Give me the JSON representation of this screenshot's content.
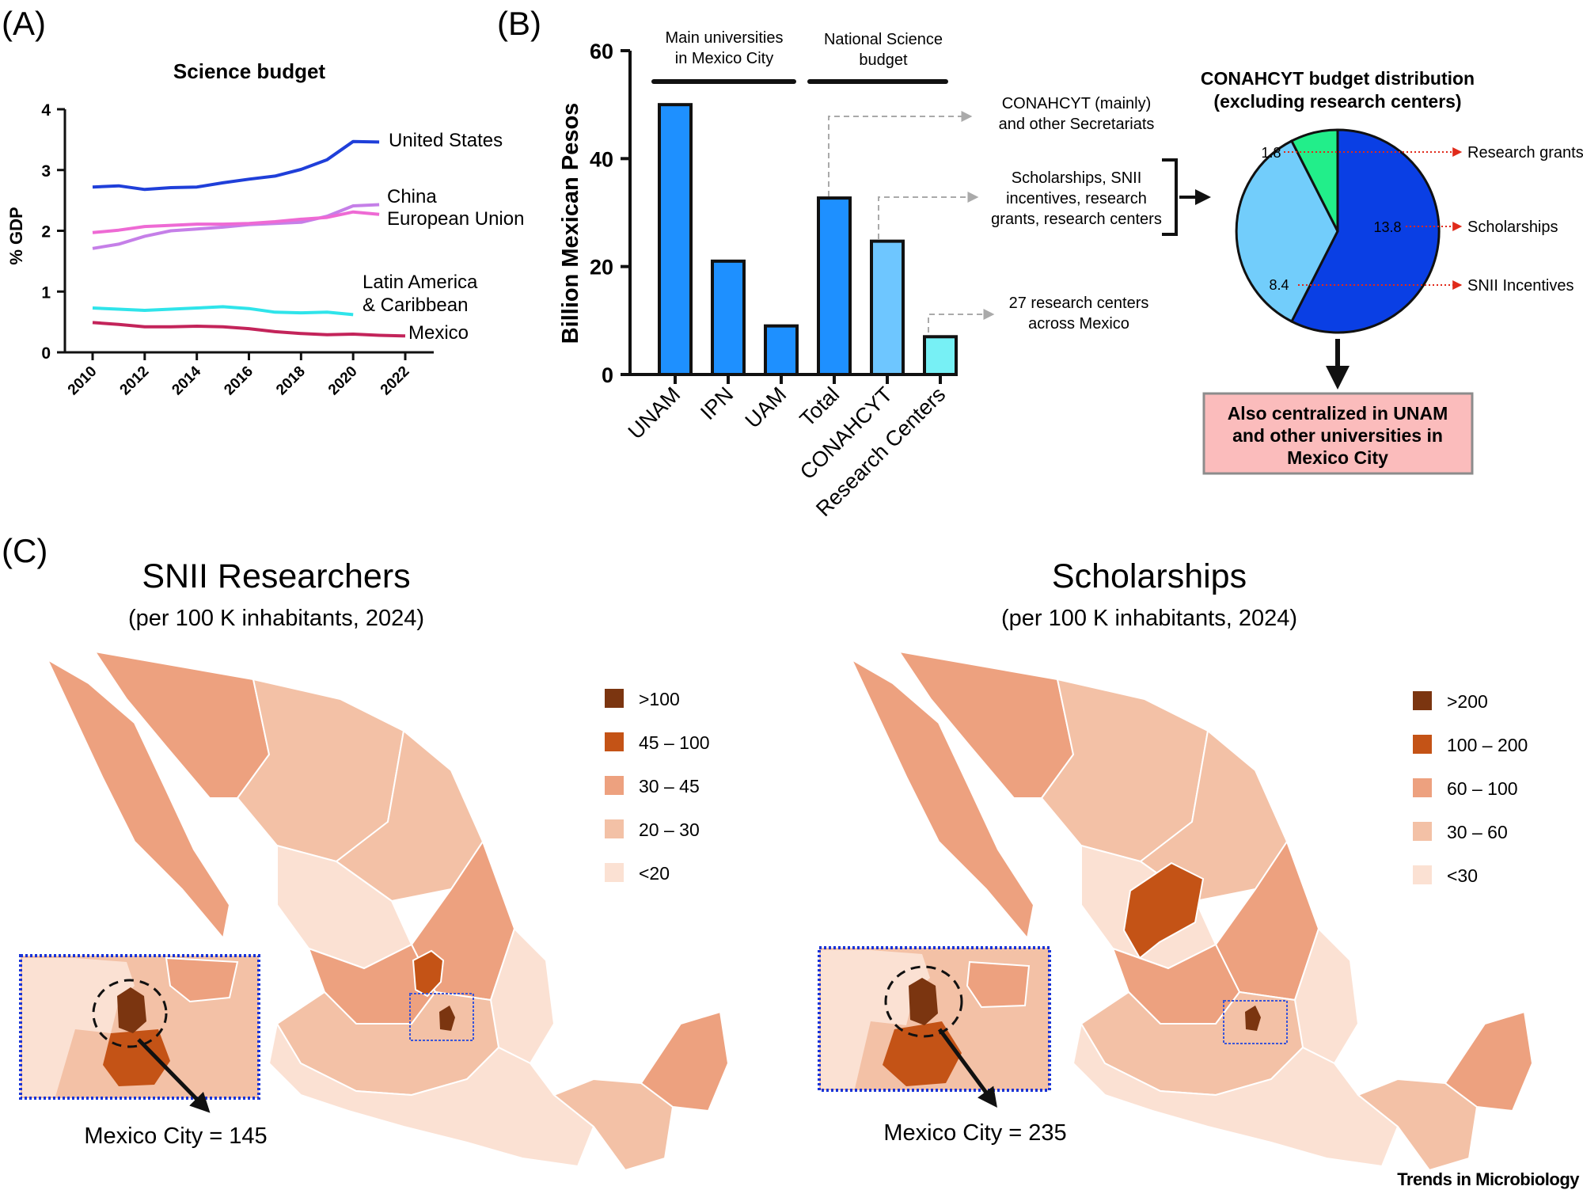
{
  "panels": {
    "a": "(A)",
    "b": "(B)",
    "c": "(C)"
  },
  "chart_data": [
    {
      "type": "line",
      "title": "Science budget",
      "xlabel": "",
      "ylabel": "% GDP",
      "xlim": [
        2010,
        2022
      ],
      "ylim": [
        0,
        4
      ],
      "xticks": [
        "2010",
        "2012",
        "2014",
        "2016",
        "2018",
        "2020",
        "2022"
      ],
      "yticks": [
        "0",
        "1",
        "2",
        "3",
        "4"
      ],
      "series": [
        {
          "name": "United States",
          "color": "#1f3fd9",
          "x": [
            2010,
            2011,
            2012,
            2013,
            2014,
            2015,
            2016,
            2017,
            2018,
            2019,
            2020,
            2021
          ],
          "y": [
            2.72,
            2.74,
            2.68,
            2.71,
            2.72,
            2.79,
            2.85,
            2.9,
            3.01,
            3.17,
            3.47,
            3.46
          ]
        },
        {
          "name": "China",
          "color": "#c57fe8",
          "x": [
            2010,
            2011,
            2012,
            2013,
            2014,
            2015,
            2016,
            2017,
            2018,
            2019,
            2020,
            2021
          ],
          "y": [
            1.71,
            1.78,
            1.91,
            2.0,
            2.03,
            2.06,
            2.1,
            2.12,
            2.14,
            2.24,
            2.41,
            2.43
          ]
        },
        {
          "name": "European Union",
          "color": "#ee6ad4",
          "x": [
            2010,
            2011,
            2012,
            2013,
            2014,
            2015,
            2016,
            2017,
            2018,
            2019,
            2020,
            2021
          ],
          "y": [
            1.97,
            2.01,
            2.07,
            2.09,
            2.11,
            2.11,
            2.12,
            2.15,
            2.19,
            2.22,
            2.31,
            2.27
          ]
        },
        {
          "name": "Latin America & Caribbean",
          "color": "#2fe4ea",
          "x": [
            2010,
            2011,
            2012,
            2013,
            2014,
            2015,
            2016,
            2017,
            2018,
            2019,
            2020
          ],
          "y": [
            0.73,
            0.71,
            0.69,
            0.71,
            0.73,
            0.75,
            0.72,
            0.66,
            0.65,
            0.66,
            0.62
          ]
        },
        {
          "name": "Mexico",
          "color": "#c3245a",
          "x": [
            2010,
            2011,
            2012,
            2013,
            2014,
            2015,
            2016,
            2017,
            2018,
            2019,
            2020,
            2021,
            2022
          ],
          "y": [
            0.49,
            0.46,
            0.42,
            0.42,
            0.43,
            0.42,
            0.39,
            0.34,
            0.31,
            0.29,
            0.3,
            0.28,
            0.27
          ]
        }
      ],
      "legend_labels": [
        "United States",
        "China",
        "European Union",
        "Latin America",
        "& Caribbean",
        "Mexico"
      ]
    },
    {
      "type": "bar",
      "ylabel": "Billion Mexican Pesos",
      "ylim": [
        0,
        60
      ],
      "yticks": [
        "0",
        "20",
        "40",
        "60"
      ],
      "categories": [
        "UNAM",
        "IPN",
        "UAM",
        "Total",
        "CONAHCYT",
        "Research Centers"
      ],
      "values": [
        50,
        21,
        9,
        32.7,
        24.7,
        7
      ],
      "colors": [
        "#1e90ff",
        "#1e90ff",
        "#1e90ff",
        "#1e90ff",
        "#6ec6ff",
        "#77f0f5"
      ],
      "group_labels": [
        {
          "lines": [
            "Main universities",
            "in Mexico City"
          ]
        },
        {
          "lines": [
            "National Science",
            "budget"
          ]
        }
      ],
      "annotations": [
        {
          "lines": [
            "CONAHCYT (mainly)",
            "and other Secretariats"
          ]
        },
        {
          "lines": [
            "Scholarships,  SNII",
            "incentives, research",
            "grants, research centers"
          ]
        },
        {
          "lines": [
            "27 research centers",
            "across Mexico"
          ]
        }
      ]
    },
    {
      "type": "pie",
      "title": [
        "CONAHCYT budget distribution",
        "(excluding research centers)"
      ],
      "slices": [
        {
          "label": "Scholarships",
          "value": 13.8,
          "color": "#0a3fe4"
        },
        {
          "label": "SNII Incentives",
          "value": 8.4,
          "color": "#72cdfb"
        },
        {
          "label": "Research grants",
          "value": 1.8,
          "color": "#22ee8a"
        }
      ],
      "note": [
        "Also centralized in UNAM",
        "and other universities in",
        "Mexico City"
      ]
    },
    {
      "type": "choropleth",
      "title": "SNII Researchers",
      "subtitle": "(per 100 K inhabitants, 2024)",
      "legend": [
        {
          "label": ">100",
          "color": "#7b3510"
        },
        {
          "label": "45 – 100",
          "color": "#c45316"
        },
        {
          "label": "30 – 45",
          "color": "#eda17f"
        },
        {
          "label": "20 – 30",
          "color": "#f3c1a6"
        },
        {
          "label": "<20",
          "color": "#fbe1d3"
        }
      ],
      "callout": "Mexico City = 145"
    },
    {
      "type": "choropleth",
      "title": "Scholarships",
      "subtitle": "(per 100 K inhabitants, 2024)",
      "legend": [
        {
          "label": ">200",
          "color": "#7b3510"
        },
        {
          "label": "100 – 200",
          "color": "#c45316"
        },
        {
          "label": "60 – 100",
          "color": "#eda17f"
        },
        {
          "label": "30 – 60",
          "color": "#f3c1a6"
        },
        {
          "label": "<30",
          "color": "#fbe1d3"
        }
      ],
      "callout": "Mexico City = 235"
    }
  ],
  "footer": "Trends in Microbiology"
}
